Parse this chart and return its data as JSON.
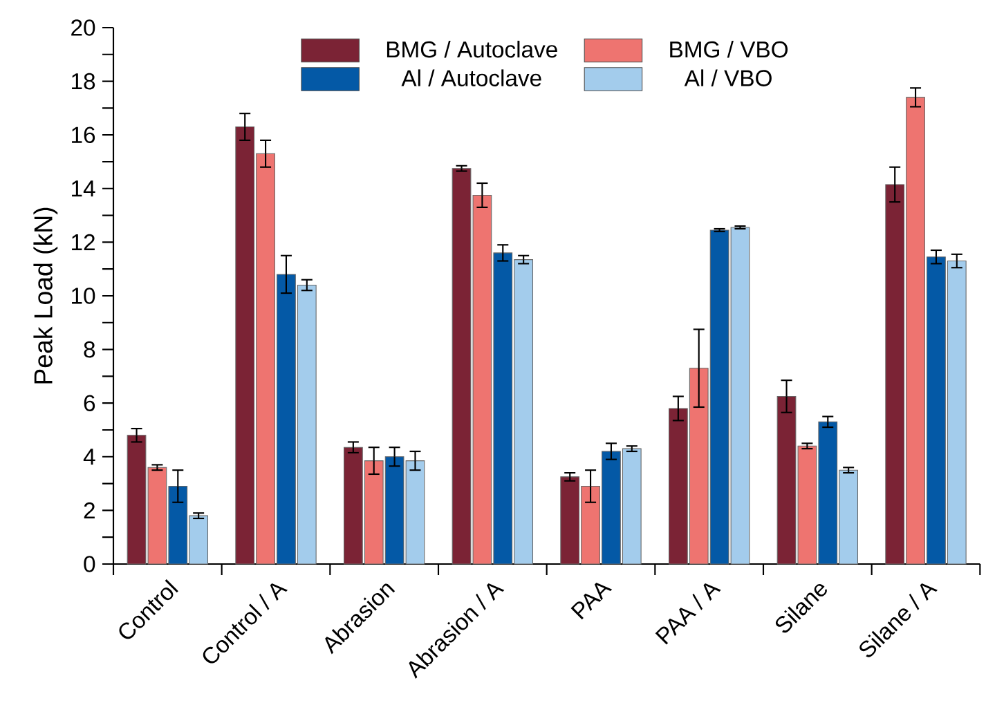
{
  "chart_data": {
    "type": "bar",
    "ylabel": "Peak Load (kN)",
    "categories": [
      "Control",
      "Control / A",
      "Abrasion",
      "Abrasion / A",
      "PAA",
      "PAA / A",
      "Silane",
      "Silane / A"
    ],
    "series": [
      {
        "name": "BMG / Autoclave",
        "color": "#7b2335",
        "values": [
          4.8,
          16.3,
          4.35,
          14.75,
          3.25,
          5.8,
          6.25,
          14.15
        ],
        "errors": [
          0.25,
          0.5,
          0.2,
          0.1,
          0.15,
          0.45,
          0.6,
          0.65
        ]
      },
      {
        "name": "BMG / VBO",
        "color": "#ee7470",
        "values": [
          3.6,
          15.3,
          3.85,
          13.75,
          2.9,
          7.3,
          4.4,
          17.4
        ],
        "errors": [
          0.1,
          0.5,
          0.5,
          0.45,
          0.6,
          1.45,
          0.1,
          0.35
        ]
      },
      {
        "name": "Al / Autoclave",
        "color": "#0459a6",
        "values": [
          2.9,
          10.8,
          4.0,
          11.6,
          4.2,
          12.45,
          5.3,
          11.45
        ],
        "errors": [
          0.6,
          0.7,
          0.35,
          0.3,
          0.3,
          0.05,
          0.2,
          0.25
        ]
      },
      {
        "name": "Al / VBO",
        "color": "#a3ccec",
        "values": [
          1.8,
          10.4,
          3.85,
          11.35,
          4.3,
          12.55,
          3.5,
          11.3
        ],
        "errors": [
          0.1,
          0.2,
          0.35,
          0.15,
          0.1,
          0.05,
          0.1,
          0.25
        ]
      }
    ],
    "ylim": [
      0,
      20
    ],
    "yticks": [
      0,
      2,
      4,
      6,
      8,
      10,
      12,
      14,
      16,
      18,
      20
    ],
    "legend": "top"
  }
}
